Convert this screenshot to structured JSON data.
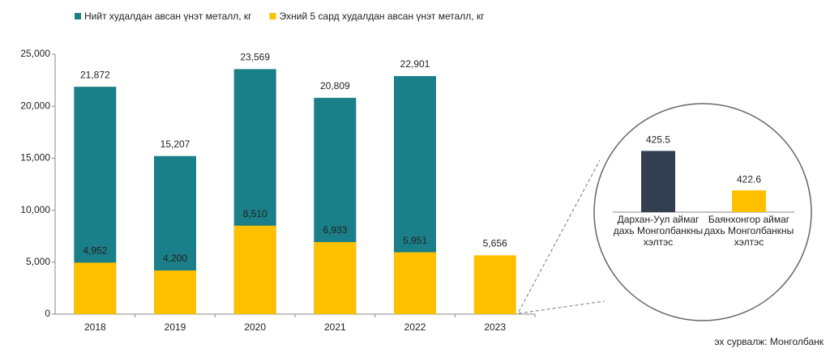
{
  "chart_data": [
    {
      "type": "bar",
      "categories": [
        "2018",
        "2019",
        "2020",
        "2021",
        "2022",
        "2023"
      ],
      "series": [
        {
          "name": "Нийт худалдан авсан үнэт металл, кг",
          "color": "#1a7f88",
          "values": [
            21872,
            15207,
            23569,
            20809,
            22901,
            null
          ],
          "value_labels": [
            "21,872",
            "15,207",
            "23,569",
            "20,809",
            "22,901",
            null
          ]
        },
        {
          "name": "Эхний 5 сард худалдан авсан үнэт металл, кг",
          "color": "#ffc000",
          "values": [
            4952,
            4200,
            8510,
            6933,
            5951,
            5656
          ],
          "value_labels": [
            "4,952",
            "4,200",
            "8,510",
            "6,933",
            "5,951",
            "5,656"
          ]
        }
      ],
      "ylim": [
        0,
        25000
      ],
      "yticks": [
        0,
        {
          "value": 5000,
          "label": "5,000"
        },
        {
          "value": 10000,
          "label": "10,000"
        },
        {
          "value": 15000,
          "label": "15,000"
        },
        {
          "value": 20000,
          "label": "20,000"
        },
        {
          "value": 25000,
          "label": "25,000"
        }
      ],
      "source": "эх сурвалж: Монголбанк"
    },
    {
      "type": "bar",
      "categories": [
        "Дархан-Уул аймаг дахь Монголбанкны хэлтэс",
        "Баянхонгор аймаг дахь Монголбанкны хэлтэс"
      ],
      "values": [
        425.5,
        422.6
      ],
      "colors": [
        "#333f50",
        "#ffc000"
      ],
      "ylim": [
        421,
        426
      ]
    }
  ]
}
